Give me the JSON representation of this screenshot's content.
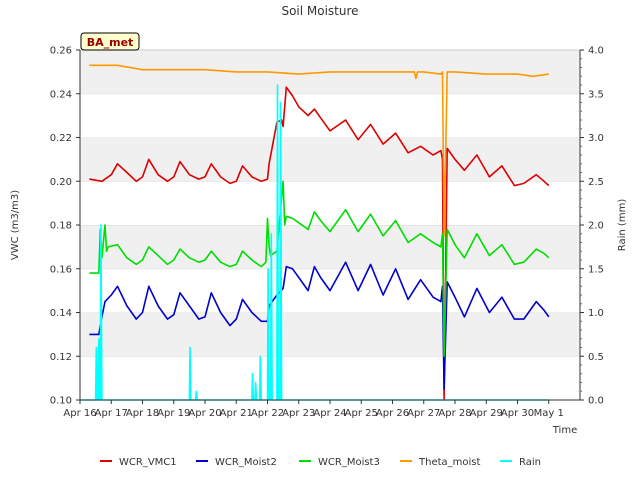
{
  "chart_data": {
    "type": "line",
    "title": "Soil Moisture",
    "site_label": "BA_met",
    "xlabel": "Time",
    "ylabel": "VWC (m3/m3)",
    "y2label": "Rain (mm)",
    "ylim": [
      0.1,
      0.26
    ],
    "y2lim": [
      0.0,
      4.0
    ],
    "xlim": [
      "Apr 16",
      "May 1"
    ],
    "x_ticks": [
      "Apr 16",
      "Apr 17",
      "Apr 18",
      "Apr 19",
      "Apr 20",
      "Apr 21",
      "Apr 22",
      "Apr 23",
      "Apr 24",
      "Apr 25",
      "Apr 26",
      "Apr 27",
      "Apr 28",
      "Apr 29",
      "Apr 30",
      "May 1"
    ],
    "y_ticks": [
      "0.10",
      "0.12",
      "0.14",
      "0.16",
      "0.18",
      "0.20",
      "0.22",
      "0.24",
      "0.26"
    ],
    "y2_ticks": [
      "0.0",
      "0.5",
      "1.0",
      "1.5",
      "2.0",
      "2.5",
      "3.0",
      "3.5",
      "4.0"
    ],
    "grid": "horizontal bands",
    "legend_position": "bottom",
    "series": [
      {
        "name": "WCR_VMC1",
        "color": "#dd0000",
        "axis": "left",
        "x": [
          0.3,
          0.7,
          1.0,
          1.2,
          1.5,
          1.8,
          2.0,
          2.2,
          2.5,
          2.8,
          3.0,
          3.2,
          3.5,
          3.8,
          4.0,
          4.2,
          4.5,
          4.8,
          5.0,
          5.2,
          5.5,
          5.8,
          6.0,
          6.05,
          6.3,
          6.45,
          6.5,
          6.6,
          6.8,
          7.0,
          7.3,
          7.5,
          7.7,
          8.0,
          8.5,
          8.9,
          9.3,
          9.7,
          10.1,
          10.5,
          10.9,
          11.3,
          11.55,
          11.6,
          11.65,
          11.75,
          12.0,
          12.3,
          12.7,
          13.1,
          13.5,
          13.9,
          14.2,
          14.6,
          14.85,
          15.0
        ],
        "y": [
          0.201,
          0.2,
          0.203,
          0.208,
          0.204,
          0.2,
          0.202,
          0.21,
          0.203,
          0.2,
          0.202,
          0.209,
          0.203,
          0.201,
          0.202,
          0.208,
          0.202,
          0.199,
          0.2,
          0.207,
          0.202,
          0.2,
          0.201,
          0.208,
          0.227,
          0.228,
          0.225,
          0.243,
          0.239,
          0.234,
          0.23,
          0.233,
          0.229,
          0.223,
          0.228,
          0.219,
          0.226,
          0.217,
          0.222,
          0.213,
          0.216,
          0.212,
          0.214,
          0.21,
          0.1,
          0.215,
          0.21,
          0.205,
          0.212,
          0.202,
          0.207,
          0.198,
          0.199,
          0.203,
          0.2,
          0.198
        ]
      },
      {
        "name": "WCR_Moist2",
        "color": "#0000cc",
        "axis": "left",
        "x": [
          0.3,
          0.6,
          0.7,
          0.8,
          1.0,
          1.2,
          1.5,
          1.8,
          2.0,
          2.2,
          2.5,
          2.8,
          3.0,
          3.2,
          3.5,
          3.8,
          4.0,
          4.2,
          4.5,
          4.8,
          5.0,
          5.2,
          5.5,
          5.8,
          6.0,
          6.05,
          6.3,
          6.5,
          6.6,
          6.8,
          7.0,
          7.3,
          7.5,
          7.7,
          8.0,
          8.5,
          8.9,
          9.3,
          9.7,
          10.1,
          10.5,
          10.9,
          11.3,
          11.55,
          11.6,
          11.65,
          11.75,
          12.0,
          12.3,
          12.7,
          13.1,
          13.5,
          13.9,
          14.2,
          14.6,
          14.85,
          15.0
        ],
        "y": [
          0.13,
          0.13,
          0.138,
          0.145,
          0.148,
          0.152,
          0.143,
          0.137,
          0.14,
          0.152,
          0.143,
          0.137,
          0.139,
          0.149,
          0.143,
          0.137,
          0.138,
          0.149,
          0.14,
          0.134,
          0.137,
          0.146,
          0.14,
          0.136,
          0.136,
          0.143,
          0.148,
          0.151,
          0.161,
          0.16,
          0.156,
          0.15,
          0.161,
          0.156,
          0.15,
          0.163,
          0.15,
          0.162,
          0.148,
          0.16,
          0.146,
          0.155,
          0.147,
          0.145,
          0.152,
          0.105,
          0.154,
          0.147,
          0.138,
          0.151,
          0.14,
          0.147,
          0.137,
          0.137,
          0.145,
          0.141,
          0.138
        ]
      },
      {
        "name": "WCR_Moist3",
        "color": "#00dd00",
        "axis": "left",
        "x": [
          0.3,
          0.6,
          0.65,
          0.7,
          0.8,
          0.85,
          0.9,
          1.2,
          1.5,
          1.8,
          2.0,
          2.2,
          2.5,
          2.8,
          3.0,
          3.2,
          3.5,
          3.8,
          4.0,
          4.2,
          4.5,
          4.8,
          5.0,
          5.2,
          5.5,
          5.8,
          5.95,
          6.0,
          6.05,
          6.1,
          6.3,
          6.5,
          6.55,
          6.6,
          6.8,
          7.0,
          7.3,
          7.5,
          7.7,
          8.0,
          8.5,
          8.9,
          9.3,
          9.7,
          10.1,
          10.5,
          10.9,
          11.3,
          11.55,
          11.6,
          11.65,
          11.75,
          12.0,
          12.3,
          12.7,
          13.1,
          13.5,
          13.9,
          14.2,
          14.6,
          14.85,
          15.0
        ],
        "y": [
          0.158,
          0.158,
          0.178,
          0.165,
          0.18,
          0.168,
          0.17,
          0.171,
          0.165,
          0.162,
          0.164,
          0.17,
          0.166,
          0.162,
          0.164,
          0.169,
          0.165,
          0.163,
          0.164,
          0.168,
          0.163,
          0.161,
          0.162,
          0.168,
          0.164,
          0.161,
          0.163,
          0.183,
          0.17,
          0.166,
          0.168,
          0.2,
          0.18,
          0.184,
          0.183,
          0.181,
          0.178,
          0.186,
          0.182,
          0.177,
          0.187,
          0.177,
          0.185,
          0.175,
          0.182,
          0.172,
          0.176,
          0.172,
          0.17,
          0.176,
          0.12,
          0.178,
          0.171,
          0.165,
          0.176,
          0.166,
          0.171,
          0.162,
          0.163,
          0.169,
          0.167,
          0.165
        ]
      },
      {
        "name": "Theta_moist",
        "color": "#ff9900",
        "axis": "left",
        "x": [
          0.3,
          0.8,
          1.2,
          2.0,
          3.0,
          4.0,
          5.0,
          6.0,
          7.0,
          8.0,
          9.0,
          10.0,
          10.7,
          10.75,
          10.8,
          11.0,
          11.55,
          11.6,
          11.65,
          11.75,
          12.0,
          13.0,
          14.0,
          14.5,
          15.0
        ],
        "y": [
          0.253,
          0.253,
          0.253,
          0.251,
          0.251,
          0.251,
          0.25,
          0.25,
          0.249,
          0.25,
          0.25,
          0.25,
          0.25,
          0.247,
          0.25,
          0.25,
          0.249,
          0.25,
          0.175,
          0.25,
          0.25,
          0.249,
          0.249,
          0.248,
          0.249
        ]
      },
      {
        "name": "Rain",
        "color": "#00ffff",
        "axis": "right",
        "x": [
          0.0,
          0.5,
          0.52,
          0.55,
          0.57,
          0.6,
          0.62,
          0.65,
          0.67,
          0.7,
          0.75,
          3.5,
          3.52,
          3.55,
          3.7,
          3.72,
          3.75,
          5.5,
          5.52,
          5.55,
          5.6,
          5.62,
          5.65,
          5.75,
          5.77,
          5.8,
          6.0,
          6.02,
          6.05,
          6.1,
          6.12,
          6.15,
          6.3,
          6.32,
          6.35,
          6.4,
          6.42,
          6.45,
          15.0
        ],
        "y": [
          0.0,
          0.0,
          0.6,
          0.0,
          0.0,
          0.7,
          0.0,
          0.0,
          2.0,
          0.0,
          0.0,
          0.0,
          0.6,
          0.0,
          0.0,
          0.1,
          0.0,
          0.0,
          0.3,
          0.0,
          0.0,
          0.2,
          0.0,
          0.0,
          0.5,
          0.0,
          0.0,
          1.5,
          0.0,
          0.0,
          1.9,
          0.0,
          0.0,
          3.6,
          0.0,
          0.0,
          3.4,
          0.0,
          0.0
        ]
      }
    ]
  }
}
